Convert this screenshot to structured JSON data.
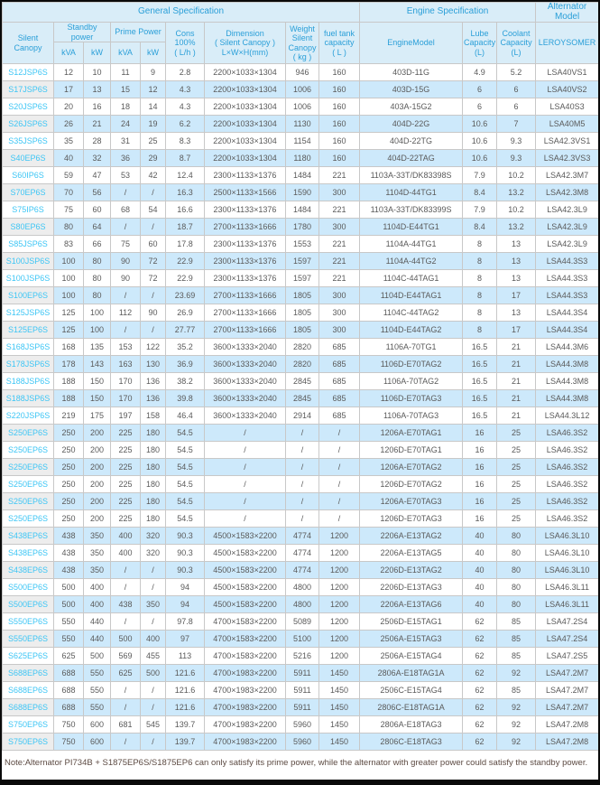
{
  "table": {
    "group_headers": [
      {
        "label": "General Specification"
      },
      {
        "label": "Engine Specification"
      },
      {
        "label": "Alternator Model"
      }
    ],
    "headers": {
      "silent_canopy": "Silent Canopy",
      "standby_power": "Standby\npower",
      "prime_power": "Prime Power",
      "kva": "kVA",
      "kw": "kW",
      "cons": "Cons\n100%\n( L/h )",
      "dimension": "Dimension\n( Silent Canopy )\nL×W×H(mm)",
      "weight": "Weight\nSilent\nCanopy\n( kg )",
      "fuel_tank": "fuel tank\ncapacity\n( L )",
      "engine_model": "EngineModel",
      "lube": "Lube\nCapacity\n(L)",
      "coolant": "Coolant\nCapacity\n(L)",
      "alternator": "LEROYSOMER"
    },
    "rows": [
      [
        "S12JSP6S",
        "12",
        "10",
        "11",
        "9",
        "2.8",
        "2200×1033×1304",
        "946",
        "160",
        "403D-11G",
        "4.9",
        "5.2",
        "LSA40VS1"
      ],
      [
        "S17JSP6S",
        "17",
        "13",
        "15",
        "12",
        "4.3",
        "2200×1033×1304",
        "1006",
        "160",
        "403D-15G",
        "6",
        "6",
        "LSA40VS2"
      ],
      [
        "S20JSP6S",
        "20",
        "16",
        "18",
        "14",
        "4.3",
        "2200×1033×1304",
        "1006",
        "160",
        "403A-15G2",
        "6",
        "6",
        "LSA40S3"
      ],
      [
        "S26JSP6S",
        "26",
        "21",
        "24",
        "19",
        "6.2",
        "2200×1033×1304",
        "1130",
        "160",
        "404D-22G",
        "10.6",
        "7",
        "LSA40M5"
      ],
      [
        "S35JSP6S",
        "35",
        "28",
        "31",
        "25",
        "8.3",
        "2200×1033×1304",
        "1154",
        "160",
        "404D-22TG",
        "10.6",
        "9.3",
        "LSA42.3VS1"
      ],
      [
        "S40EP6S",
        "40",
        "32",
        "36",
        "29",
        "8.7",
        "2200×1033×1304",
        "1180",
        "160",
        "404D-22TAG",
        "10.6",
        "9.3",
        "LSA42.3VS3"
      ],
      [
        "S60IP6S",
        "59",
        "47",
        "53",
        "42",
        "12.4",
        "2300×1133×1376",
        "1484",
        "221",
        "1103A-33T/DK83398S",
        "7.9",
        "10.2",
        "LSA42.3M7"
      ],
      [
        "S70EP6S",
        "70",
        "56",
        "/",
        "/",
        "16.3",
        "2500×1133×1566",
        "1590",
        "300",
        "1104D-44TG1",
        "8.4",
        "13.2",
        "LSA42.3M8"
      ],
      [
        "S75IP6S",
        "75",
        "60",
        "68",
        "54",
        "16.6",
        "2300×1133×1376",
        "1484",
        "221",
        "1103A-33T/DK83399S",
        "7.9",
        "10.2",
        "LSA42.3L9"
      ],
      [
        "S80EP6S",
        "80",
        "64",
        "/",
        "/",
        "18.7",
        "2700×1133×1666",
        "1780",
        "300",
        "1104D-E44TG1",
        "8.4",
        "13.2",
        "LSA42.3L9"
      ],
      [
        "S85JSP6S",
        "83",
        "66",
        "75",
        "60",
        "17.8",
        "2300×1133×1376",
        "1553",
        "221",
        "1104A-44TG1",
        "8",
        "13",
        "LSA42.3L9"
      ],
      [
        "S100JSP6S",
        "100",
        "80",
        "90",
        "72",
        "22.9",
        "2300×1133×1376",
        "1597",
        "221",
        "1104A-44TG2",
        "8",
        "13",
        "LSA44.3S3"
      ],
      [
        "S100JSP6S",
        "100",
        "80",
        "90",
        "72",
        "22.9",
        "2300×1133×1376",
        "1597",
        "221",
        "1104C-44TAG1",
        "8",
        "13",
        "LSA44.3S3"
      ],
      [
        "S100EP6S",
        "100",
        "80",
        "/",
        "/",
        "23.69",
        "2700×1133×1666",
        "1805",
        "300",
        "1104D-E44TAG1",
        "8",
        "17",
        "LSA44.3S3"
      ],
      [
        "S125JSP6S",
        "125",
        "100",
        "112",
        "90",
        "26.9",
        "2700×1133×1666",
        "1805",
        "300",
        "1104C-44TAG2",
        "8",
        "13",
        "LSA44.3S4"
      ],
      [
        "S125EP6S",
        "125",
        "100",
        "/",
        "/",
        "27.77",
        "2700×1133×1666",
        "1805",
        "300",
        "1104D-E44TAG2",
        "8",
        "17",
        "LSA44.3S4"
      ],
      [
        "S168JSP6S",
        "168",
        "135",
        "153",
        "122",
        "35.2",
        "3600×1333×2040",
        "2820",
        "685",
        "1106A-70TG1",
        "16.5",
        "21",
        "LSA44.3M6"
      ],
      [
        "S178JSP6S",
        "178",
        "143",
        "163",
        "130",
        "36.9",
        "3600×1333×2040",
        "2820",
        "685",
        "1106D-E70TAG2",
        "16.5",
        "21",
        "LSA44.3M8"
      ],
      [
        "S188JSP6S",
        "188",
        "150",
        "170",
        "136",
        "38.2",
        "3600×1333×2040",
        "2845",
        "685",
        "1106A-70TAG2",
        "16.5",
        "21",
        "LSA44.3M8"
      ],
      [
        "S188JSP6S",
        "188",
        "150",
        "170",
        "136",
        "39.8",
        "3600×1333×2040",
        "2845",
        "685",
        "1106D-E70TAG3",
        "16.5",
        "21",
        "LSA44.3M8"
      ],
      [
        "S220JSP6S",
        "219",
        "175",
        "197",
        "158",
        "46.4",
        "3600×1333×2040",
        "2914",
        "685",
        "1106A-70TAG3",
        "16.5",
        "21",
        "LSA44.3L12"
      ],
      [
        "S250EP6S",
        "250",
        "200",
        "225",
        "180",
        "54.5",
        "/",
        "/",
        "/",
        "1206A-E70TAG1",
        "16",
        "25",
        "LSA46.3S2"
      ],
      [
        "S250EP6S",
        "250",
        "200",
        "225",
        "180",
        "54.5",
        "/",
        "/",
        "/",
        "1206D-E70TAG1",
        "16",
        "25",
        "LSA46.3S2"
      ],
      [
        "S250EP6S",
        "250",
        "200",
        "225",
        "180",
        "54.5",
        "/",
        "/",
        "/",
        "1206A-E70TAG2",
        "16",
        "25",
        "LSA46.3S2"
      ],
      [
        "S250EP6S",
        "250",
        "200",
        "225",
        "180",
        "54.5",
        "/",
        "/",
        "/",
        "1206D-E70TAG2",
        "16",
        "25",
        "LSA46.3S2"
      ],
      [
        "S250EP6S",
        "250",
        "200",
        "225",
        "180",
        "54.5",
        "/",
        "/",
        "/",
        "1206A-E70TAG3",
        "16",
        "25",
        "LSA46.3S2"
      ],
      [
        "S250EP6S",
        "250",
        "200",
        "225",
        "180",
        "54.5",
        "/",
        "/",
        "/",
        "1206D-E70TAG3",
        "16",
        "25",
        "LSA46.3S2"
      ],
      [
        "S438EP6S",
        "438",
        "350",
        "400",
        "320",
        "90.3",
        "4500×1583×2200",
        "4774",
        "1200",
        "2206A-E13TAG2",
        "40",
        "80",
        "LSA46.3L10"
      ],
      [
        "S438EP6S",
        "438",
        "350",
        "400",
        "320",
        "90.3",
        "4500×1583×2200",
        "4774",
        "1200",
        "2206A-E13TAG5",
        "40",
        "80",
        "LSA46.3L10"
      ],
      [
        "S438EP6S",
        "438",
        "350",
        "/",
        "/",
        "90.3",
        "4500×1583×2200",
        "4774",
        "1200",
        "2206D-E13TAG2",
        "40",
        "80",
        "LSA46.3L10"
      ],
      [
        "S500EP6S",
        "500",
        "400",
        "/",
        "/",
        "94",
        "4500×1583×2200",
        "4800",
        "1200",
        "2206D-E13TAG3",
        "40",
        "80",
        "LSA46.3L11"
      ],
      [
        "S500EP6S",
        "500",
        "400",
        "438",
        "350",
        "94",
        "4500×1583×2200",
        "4800",
        "1200",
        "2206A-E13TAG6",
        "40",
        "80",
        "LSA46.3L11"
      ],
      [
        "S550EP6S",
        "550",
        "440",
        "/",
        "/",
        "97.8",
        "4700×1583×2200",
        "5089",
        "1200",
        "2506D-E15TAG1",
        "62",
        "85",
        "LSA47.2S4"
      ],
      [
        "S550EP6S",
        "550",
        "440",
        "500",
        "400",
        "97",
        "4700×1583×2200",
        "5100",
        "1200",
        "2506A-E15TAG3",
        "62",
        "85",
        "LSA47.2S4"
      ],
      [
        "S625EP6S",
        "625",
        "500",
        "569",
        "455",
        "113",
        "4700×1583×2200",
        "5216",
        "1200",
        "2506A-E15TAG4",
        "62",
        "85",
        "LSA47.2S5"
      ],
      [
        "S688EP6S",
        "688",
        "550",
        "625",
        "500",
        "121.6",
        "4700×1983×2200",
        "5911",
        "1450",
        "2806A-E18TAG1A",
        "62",
        "92",
        "LSA47.2M7"
      ],
      [
        "S688EP6S",
        "688",
        "550",
        "/",
        "/",
        "121.6",
        "4700×1983×2200",
        "5911",
        "1450",
        "2506C-E15TAG4",
        "62",
        "85",
        "LSA47.2M7"
      ],
      [
        "S688EP6S",
        "688",
        "550",
        "/",
        "/",
        "121.6",
        "4700×1983×2200",
        "5911",
        "1450",
        "2806C-E18TAG1A",
        "62",
        "92",
        "LSA47.2M7"
      ],
      [
        "S750EP6S",
        "750",
        "600",
        "681",
        "545",
        "139.7",
        "4700×1983×2200",
        "5960",
        "1450",
        "2806A-E18TAG3",
        "62",
        "92",
        "LSA47.2M8"
      ],
      [
        "S750EP6S",
        "750",
        "600",
        "/",
        "/",
        "139.7",
        "4700×1983×2200",
        "5960",
        "1450",
        "2806C-E18TAG3",
        "62",
        "92",
        "LSA47.2M8"
      ]
    ],
    "note": "Note:Alternator PI734B + S1875EP6S/S1875EP6 can only satisfy its prime power, while the alternator with greater power could satisfy the standby power."
  },
  "colors": {
    "header_bg": "#d9edf8",
    "header_text": "#2a9fd8",
    "model_link": "#3ec6f5",
    "row_band_blue": "#cde9fb",
    "row_band_gray": "#ededed",
    "data_text": "#5a5a5a",
    "note_text": "#5c4a42",
    "grid_line": "#c8c8c8",
    "outer_border": "#0a0a0a"
  }
}
